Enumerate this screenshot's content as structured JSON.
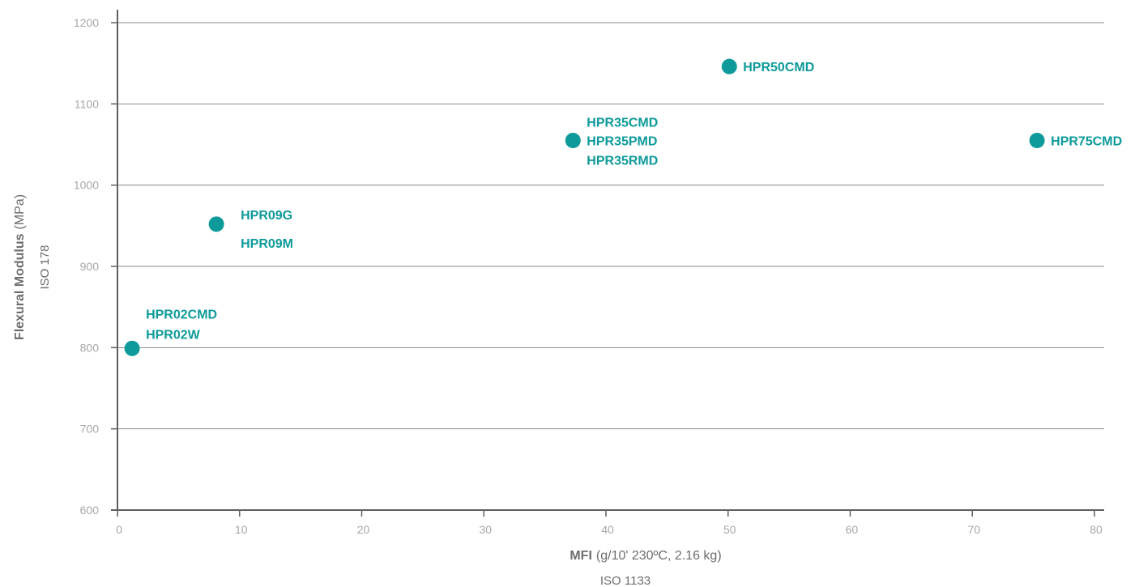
{
  "chart_data": {
    "type": "scatter",
    "xlabel_bold": "MFI",
    "xlabel_rest": "(g/10' 230ºC, 2.16 kg)",
    "xlabel_sub": "ISO 1133",
    "ylabel_bold": "Flexural Modulus",
    "ylabel_rest": "(MPa)",
    "ylabel_sub": "ISO 178",
    "xlim": [
      0,
      80
    ],
    "ylim": [
      600,
      1200
    ],
    "x_ticks": [
      "0",
      "10",
      "20",
      "30",
      "40",
      "50",
      "60",
      "70",
      "80"
    ],
    "y_ticks": [
      "600",
      "700",
      "800",
      "900",
      "1000",
      "1100",
      "1200"
    ],
    "grid": "horizontal",
    "color": "#0e9a9a",
    "points": [
      {
        "x": 1.2,
        "y": 799,
        "labels": [
          "HPR02CMD",
          "HPR02W"
        ]
      },
      {
        "x": 8.1,
        "y": 952,
        "labels": [
          "HPR09G",
          "HPR09M"
        ]
      },
      {
        "x": 37.3,
        "y": 1055,
        "labels": [
          "HPR35CMD",
          "HPR35PMD",
          "HPR35RMD"
        ]
      },
      {
        "x": 50.1,
        "y": 1146,
        "labels": [
          "HPR50CMD"
        ]
      },
      {
        "x": 75.3,
        "y": 1055,
        "labels": [
          "HPR75CMD"
        ]
      }
    ]
  }
}
